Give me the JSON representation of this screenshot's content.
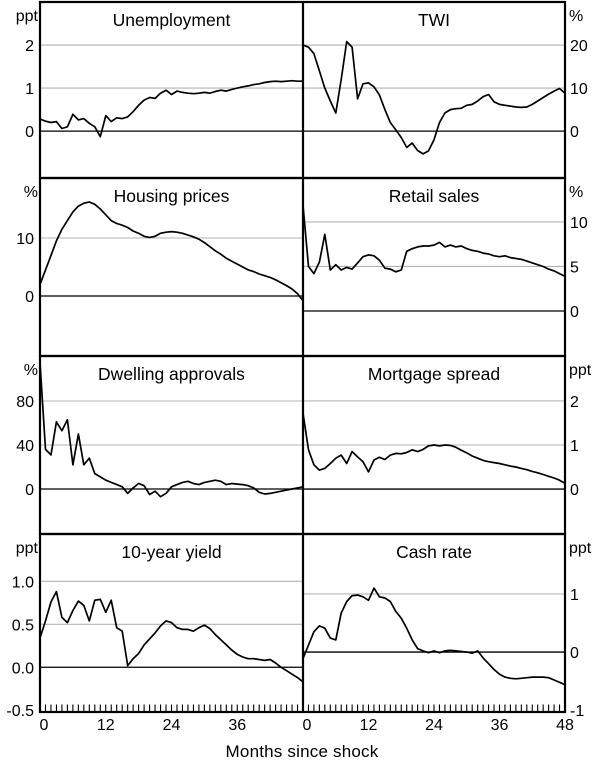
{
  "figure": {
    "xlabel": "Months since shock",
    "x_ticks": [
      0,
      12,
      24,
      36,
      48
    ],
    "x_range": [
      0,
      48
    ],
    "x_minor_tick_step": 1,
    "colors": {
      "line": "#000000",
      "grid": "#b3b3b3",
      "axis": "#000000",
      "background": "#ffffff"
    }
  },
  "chart_data": [
    {
      "id": "unemployment",
      "type": "line",
      "title": "Unemployment",
      "row": 0,
      "col": 0,
      "axis_side": "left",
      "unit": "ppt",
      "ylim": [
        -1.09,
        3.0
      ],
      "yticks": [
        {
          "v": 0,
          "label": "0"
        },
        {
          "v": 1,
          "label": "1"
        },
        {
          "v": 2,
          "label": "2"
        }
      ],
      "x_start": 0,
      "x_step": 1,
      "values": [
        0.28,
        0.23,
        0.2,
        0.22,
        0.06,
        0.1,
        0.39,
        0.26,
        0.29,
        0.18,
        0.1,
        -0.13,
        0.36,
        0.22,
        0.31,
        0.29,
        0.33,
        0.45,
        0.6,
        0.72,
        0.78,
        0.76,
        0.88,
        0.95,
        0.85,
        0.93,
        0.9,
        0.88,
        0.87,
        0.88,
        0.9,
        0.88,
        0.92,
        0.95,
        0.93,
        0.97,
        1.0,
        1.03,
        1.05,
        1.08,
        1.1,
        1.13,
        1.15,
        1.16,
        1.15,
        1.16,
        1.17,
        1.16,
        1.16
      ]
    },
    {
      "id": "twi",
      "type": "line",
      "title": "TWI",
      "row": 0,
      "col": 1,
      "axis_side": "right",
      "unit": "%",
      "ylim": [
        -10.9,
        30
      ],
      "yticks": [
        {
          "v": 0,
          "label": "0"
        },
        {
          "v": 10,
          "label": "10"
        },
        {
          "v": 20,
          "label": "20"
        }
      ],
      "x_start": 0,
      "x_step": 1,
      "values": [
        20,
        19.5,
        18,
        14,
        10,
        7,
        4.2,
        12,
        20.8,
        19.5,
        7.5,
        11,
        11.2,
        10.3,
        8.4,
        5,
        2,
        0.3,
        -1.5,
        -3.8,
        -2.8,
        -4.5,
        -5.3,
        -4.6,
        -2,
        2,
        4.2,
        5,
        5.2,
        5.3,
        6,
        6.2,
        7,
        8,
        8.5,
        6.8,
        6.2,
        6,
        5.8,
        5.6,
        5.5,
        5.6,
        6.2,
        7,
        7.8,
        8.6,
        9.3,
        9.9,
        8.8
      ]
    },
    {
      "id": "housing-prices",
      "type": "line",
      "title": "Housing prices",
      "row": 1,
      "col": 0,
      "axis_side": "left",
      "unit": "%",
      "ylim": [
        -10.34,
        20.34
      ],
      "yticks": [
        {
          "v": 0,
          "label": "0"
        },
        {
          "v": 10,
          "label": "10"
        }
      ],
      "x_start": 0,
      "x_step": 1,
      "values": [
        2,
        4.5,
        7,
        9.5,
        11.5,
        13,
        14.5,
        15.5,
        16,
        16.2,
        15.8,
        15,
        14,
        13,
        12.5,
        12.2,
        11.8,
        11.2,
        10.8,
        10.3,
        10.1,
        10.3,
        10.8,
        11,
        11.1,
        11,
        10.8,
        10.5,
        10.2,
        9.8,
        9.2,
        8.5,
        7.8,
        7.2,
        6.5,
        6,
        5.5,
        5,
        4.5,
        4.2,
        3.8,
        3.5,
        3.2,
        2.8,
        2.3,
        1.8,
        1.2,
        0.4,
        -0.8
      ]
    },
    {
      "id": "retail-sales",
      "type": "line",
      "title": "Retail sales",
      "row": 1,
      "col": 1,
      "axis_side": "right",
      "unit": "%",
      "ylim": [
        -5.06,
        14.94
      ],
      "yticks": [
        {
          "v": 0,
          "label": "0"
        },
        {
          "v": 5,
          "label": "5"
        },
        {
          "v": 10,
          "label": "10"
        }
      ],
      "x_start": 0,
      "x_step": 1,
      "values": [
        11.9,
        5,
        4.2,
        5.5,
        8.6,
        4.6,
        5.2,
        4.6,
        4.9,
        4.7,
        5.4,
        6.1,
        6.3,
        6.2,
        5.7,
        4.8,
        4.7,
        4.4,
        4.6,
        6.7,
        7,
        7.2,
        7.3,
        7.3,
        7.4,
        7.7,
        7.2,
        7.4,
        7.2,
        7.3,
        7,
        6.8,
        6.7,
        6.5,
        6.4,
        6.2,
        6.1,
        6.2,
        6,
        5.9,
        5.8,
        5.6,
        5.4,
        5.2,
        5,
        4.7,
        4.5,
        4.2,
        3.9
      ]
    },
    {
      "id": "dwelling-approvals",
      "type": "line",
      "title": "Dwelling approvals",
      "row": 2,
      "col": 0,
      "axis_side": "left",
      "unit": "%",
      "ylim": [
        -40.9,
        120.9
      ],
      "yticks": [
        {
          "v": 0,
          "label": "0"
        },
        {
          "v": 40,
          "label": "40"
        },
        {
          "v": 80,
          "label": "80"
        }
      ],
      "x_start": 0,
      "x_step": 1,
      "values": [
        115,
        36,
        31,
        61,
        53,
        63,
        22,
        50,
        22,
        28,
        14,
        11,
        8,
        6,
        4,
        2,
        -4,
        1,
        5,
        3,
        -5,
        -2,
        -7,
        -4,
        2,
        4,
        6,
        7,
        5,
        4,
        6,
        7,
        8,
        7,
        4,
        5,
        4.5,
        4,
        3,
        1,
        -3,
        -4.5,
        -4,
        -3,
        -2,
        -1,
        0,
        1,
        2
      ]
    },
    {
      "id": "mortgage-spread",
      "type": "line",
      "title": "Mortgage spread",
      "row": 2,
      "col": 1,
      "axis_side": "right",
      "unit": "ppt",
      "ylim": [
        -1.02,
        3.02
      ],
      "yticks": [
        {
          "v": 0,
          "label": "0"
        },
        {
          "v": 1,
          "label": "1"
        },
        {
          "v": 2,
          "label": "2"
        }
      ],
      "x_start": 0,
      "x_step": 1,
      "values": [
        1.72,
        0.89,
        0.55,
        0.43,
        0.47,
        0.58,
        0.7,
        0.77,
        0.58,
        0.85,
        0.73,
        0.62,
        0.39,
        0.66,
        0.72,
        0.67,
        0.77,
        0.81,
        0.8,
        0.83,
        0.89,
        0.85,
        0.9,
        0.98,
        1.0,
        0.98,
        1.0,
        0.99,
        0.95,
        0.88,
        0.82,
        0.75,
        0.7,
        0.65,
        0.62,
        0.6,
        0.58,
        0.55,
        0.52,
        0.5,
        0.47,
        0.44,
        0.4,
        0.37,
        0.33,
        0.29,
        0.25,
        0.2,
        0.13
      ]
    },
    {
      "id": "ten-year-yield",
      "type": "line",
      "title": "10-year yield",
      "row": 3,
      "col": 0,
      "axis_side": "left",
      "unit": "ppt",
      "ylim": [
        -0.52,
        1.55
      ],
      "yticks": [
        {
          "v": -0.5,
          "label": "-0.5"
        },
        {
          "v": 0,
          "label": "0.0"
        },
        {
          "v": 0.5,
          "label": "0.5"
        },
        {
          "v": 1,
          "label": "1.0"
        }
      ],
      "x_start": 0,
      "x_step": 1,
      "values": [
        0.34,
        0.54,
        0.76,
        0.88,
        0.58,
        0.52,
        0.66,
        0.77,
        0.72,
        0.54,
        0.78,
        0.79,
        0.64,
        0.78,
        0.46,
        0.42,
        0.02,
        0.1,
        0.16,
        0.26,
        0.33,
        0.4,
        0.48,
        0.54,
        0.52,
        0.46,
        0.44,
        0.44,
        0.42,
        0.46,
        0.49,
        0.45,
        0.38,
        0.32,
        0.26,
        0.2,
        0.15,
        0.12,
        0.1,
        0.1,
        0.09,
        0.08,
        0.09,
        0.05,
        0.0,
        -0.04,
        -0.08,
        -0.12,
        -0.17
      ]
    },
    {
      "id": "cash-rate",
      "type": "line",
      "title": "Cash rate",
      "row": 3,
      "col": 1,
      "axis_side": "right",
      "unit": "ppt",
      "ylim": [
        -1.03,
        2.03
      ],
      "yticks": [
        {
          "v": -1,
          "label": "-1"
        },
        {
          "v": 0,
          "label": "0"
        },
        {
          "v": 1,
          "label": "1"
        }
      ],
      "x_start": 0,
      "x_step": 1,
      "values": [
        -0.11,
        0.12,
        0.35,
        0.45,
        0.41,
        0.24,
        0.21,
        0.67,
        0.87,
        0.97,
        0.98,
        0.95,
        0.89,
        1.1,
        0.95,
        0.93,
        0.87,
        0.7,
        0.58,
        0.41,
        0.21,
        0.06,
        0.02,
        -0.01,
        0.02,
        -0.01,
        0.02,
        0.03,
        0.02,
        0.01,
        0.0,
        -0.02,
        0.02,
        -0.1,
        -0.2,
        -0.3,
        -0.38,
        -0.43,
        -0.45,
        -0.46,
        -0.45,
        -0.44,
        -0.43,
        -0.43,
        -0.43,
        -0.44,
        -0.48,
        -0.52,
        -0.56
      ]
    }
  ]
}
